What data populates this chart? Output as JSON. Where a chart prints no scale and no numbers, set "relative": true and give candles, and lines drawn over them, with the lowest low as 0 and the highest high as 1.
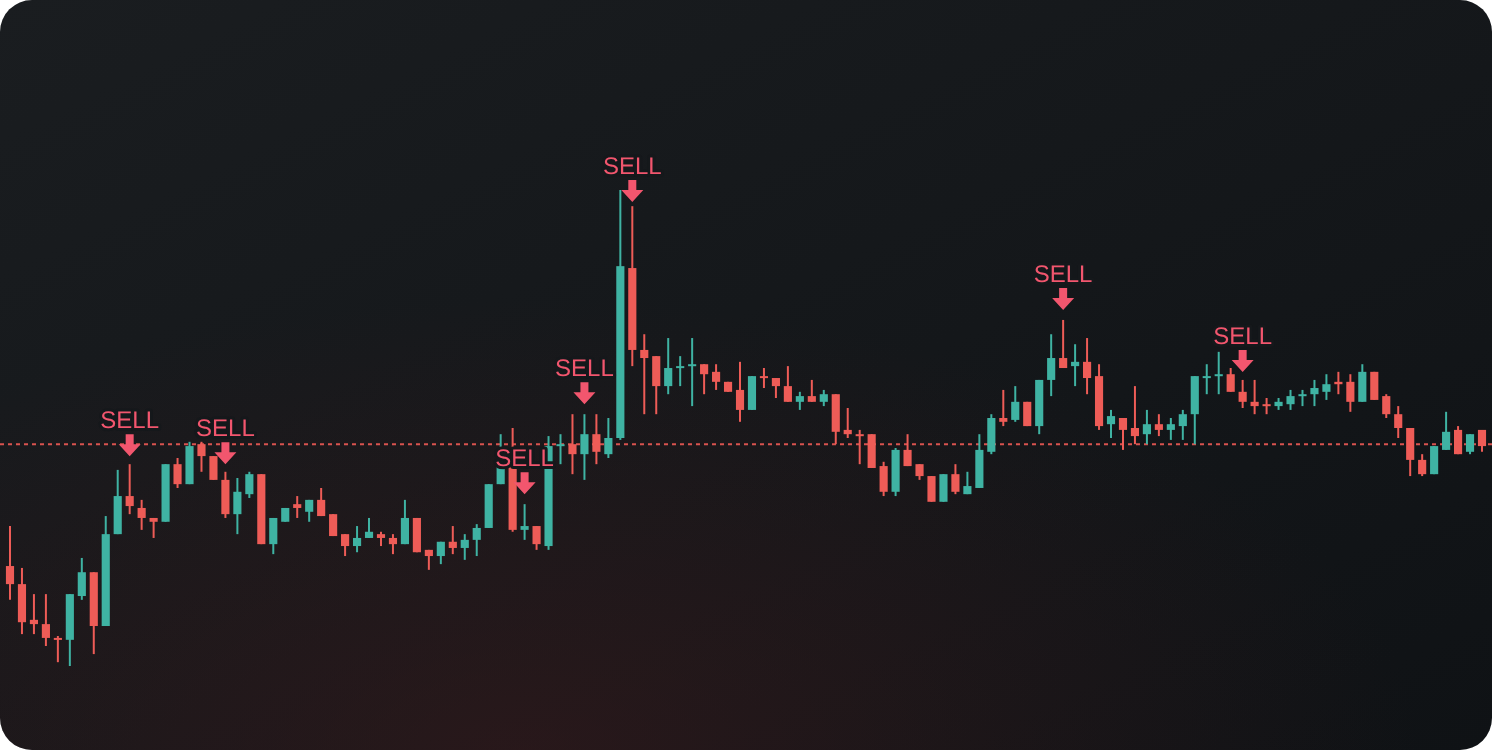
{
  "chart_data": {
    "type": "candlestick",
    "relative": true,
    "categories": [
      null,
      null,
      null,
      null,
      null,
      null,
      null,
      null,
      null,
      null,
      null,
      null,
      null,
      null,
      null,
      null,
      null,
      null,
      null,
      null,
      null,
      null,
      null,
      null,
      null,
      null,
      null,
      null,
      null,
      null,
      null,
      null,
      null,
      null,
      null,
      null,
      null,
      null,
      null,
      null,
      null,
      null,
      null,
      null,
      null,
      null,
      null,
      null,
      null,
      null,
      null,
      null,
      null,
      null,
      null,
      null,
      null,
      null,
      null,
      null,
      null,
      null,
      null,
      null,
      null,
      null,
      null,
      null,
      null,
      null,
      null,
      null,
      null,
      null,
      null,
      null,
      null,
      null,
      null,
      null,
      null,
      null,
      null,
      null,
      null,
      null,
      null,
      null,
      null,
      null,
      null,
      null,
      null,
      null,
      null,
      null,
      null,
      null,
      null,
      null,
      null,
      null,
      null,
      null,
      null,
      null,
      null,
      null,
      null,
      null,
      null,
      null,
      null,
      null,
      null,
      null,
      null,
      null,
      null,
      null,
      null,
      null,
      null,
      null
    ],
    "ohlc": [
      [
        0.21,
        0.294,
        0.139,
        0.172
      ],
      [
        0.172,
        0.206,
        0.067,
        0.092
      ],
      [
        0.097,
        0.151,
        0.067,
        0.088
      ],
      [
        0.088,
        0.151,
        0.042,
        0.059
      ],
      [
        0.059,
        0.063,
        0.008,
        0.055
      ],
      [
        0.055,
        0.151,
        0.0,
        0.151
      ],
      [
        0.147,
        0.227,
        0.139,
        0.197
      ],
      [
        0.197,
        0.197,
        0.025,
        0.084
      ],
      [
        0.084,
        0.315,
        0.084,
        0.277
      ],
      [
        0.277,
        0.412,
        0.277,
        0.357
      ],
      [
        0.357,
        0.424,
        0.319,
        0.336
      ],
      [
        0.332,
        0.349,
        0.286,
        0.311
      ],
      [
        0.311,
        0.311,
        0.269,
        0.303
      ],
      [
        0.303,
        0.424,
        0.303,
        0.424
      ],
      [
        0.424,
        0.437,
        0.374,
        0.382
      ],
      [
        0.382,
        0.471,
        0.382,
        0.462
      ],
      [
        0.466,
        0.471,
        0.408,
        0.441
      ],
      [
        0.441,
        0.441,
        0.391,
        0.391
      ],
      [
        0.391,
        0.408,
        0.311,
        0.319
      ],
      [
        0.319,
        0.395,
        0.277,
        0.366
      ],
      [
        0.361,
        0.408,
        0.353,
        0.403
      ],
      [
        0.403,
        0.403,
        0.256,
        0.256
      ],
      [
        0.256,
        0.311,
        0.235,
        0.311
      ],
      [
        0.303,
        0.332,
        0.303,
        0.332
      ],
      [
        0.34,
        0.357,
        0.311,
        0.332
      ],
      [
        0.324,
        0.349,
        0.303,
        0.349
      ],
      [
        0.349,
        0.374,
        0.315,
        0.315
      ],
      [
        0.319,
        0.319,
        0.273,
        0.273
      ],
      [
        0.277,
        0.277,
        0.231,
        0.252
      ],
      [
        0.252,
        0.294,
        0.239,
        0.269
      ],
      [
        0.269,
        0.311,
        0.269,
        0.282
      ],
      [
        0.277,
        0.282,
        0.252,
        0.269
      ],
      [
        0.269,
        0.277,
        0.235,
        0.256
      ],
      [
        0.256,
        0.349,
        0.256,
        0.311
      ],
      [
        0.311,
        0.311,
        0.239,
        0.239
      ],
      [
        0.244,
        0.244,
        0.202,
        0.231
      ],
      [
        0.231,
        0.261,
        0.214,
        0.261
      ],
      [
        0.261,
        0.294,
        0.235,
        0.248
      ],
      [
        0.248,
        0.277,
        0.223,
        0.265
      ],
      [
        0.265,
        0.298,
        0.231,
        0.29
      ],
      [
        0.29,
        0.382,
        0.29,
        0.382
      ],
      [
        0.382,
        0.487,
        0.382,
        0.429
      ],
      [
        0.429,
        0.5,
        0.282,
        0.286
      ],
      [
        0.286,
        0.34,
        0.265,
        0.294
      ],
      [
        0.294,
        0.294,
        0.244,
        0.256
      ],
      [
        0.252,
        0.483,
        0.244,
        0.462
      ],
      [
        0.462,
        0.487,
        0.424,
        0.466
      ],
      [
        0.466,
        0.529,
        0.403,
        0.445
      ],
      [
        0.445,
        0.529,
        0.391,
        0.487
      ],
      [
        0.487,
        0.529,
        0.424,
        0.45
      ],
      [
        0.445,
        0.521,
        0.437,
        0.479
      ],
      [
        0.479,
        1.0,
        0.475,
        0.84
      ],
      [
        0.836,
        0.966,
        0.63,
        0.664
      ],
      [
        0.664,
        0.697,
        0.529,
        0.647
      ],
      [
        0.651,
        0.651,
        0.529,
        0.588
      ],
      [
        0.588,
        0.689,
        0.571,
        0.626
      ],
      [
        0.626,
        0.651,
        0.588,
        0.63
      ],
      [
        0.63,
        0.689,
        0.546,
        0.634
      ],
      [
        0.634,
        0.634,
        0.571,
        0.613
      ],
      [
        0.618,
        0.634,
        0.58,
        0.597
      ],
      [
        0.597,
        0.597,
        0.576,
        0.576
      ],
      [
        0.58,
        0.639,
        0.513,
        0.538
      ],
      [
        0.538,
        0.609,
        0.538,
        0.609
      ],
      [
        0.609,
        0.626,
        0.584,
        0.605
      ],
      [
        0.605,
        0.605,
        0.563,
        0.588
      ],
      [
        0.588,
        0.63,
        0.555,
        0.555
      ],
      [
        0.555,
        0.576,
        0.538,
        0.567
      ],
      [
        0.567,
        0.601,
        0.555,
        0.555
      ],
      [
        0.555,
        0.58,
        0.546,
        0.571
      ],
      [
        0.571,
        0.571,
        0.466,
        0.492
      ],
      [
        0.496,
        0.542,
        0.479,
        0.487
      ],
      [
        0.487,
        0.496,
        0.424,
        0.483
      ],
      [
        0.487,
        0.487,
        0.416,
        0.416
      ],
      [
        0.42,
        0.429,
        0.357,
        0.366
      ],
      [
        0.366,
        0.458,
        0.357,
        0.454
      ],
      [
        0.454,
        0.487,
        0.42,
        0.42
      ],
      [
        0.424,
        0.424,
        0.391,
        0.399
      ],
      [
        0.399,
        0.399,
        0.345,
        0.345
      ],
      [
        0.345,
        0.403,
        0.345,
        0.403
      ],
      [
        0.403,
        0.424,
        0.361,
        0.366
      ],
      [
        0.361,
        0.408,
        0.361,
        0.378
      ],
      [
        0.374,
        0.487,
        0.374,
        0.454
      ],
      [
        0.45,
        0.529,
        0.445,
        0.521
      ],
      [
        0.521,
        0.58,
        0.504,
        0.513
      ],
      [
        0.517,
        0.588,
        0.513,
        0.555
      ],
      [
        0.555,
        0.555,
        0.504,
        0.504
      ],
      [
        0.504,
        0.601,
        0.487,
        0.601
      ],
      [
        0.601,
        0.697,
        0.567,
        0.647
      ],
      [
        0.647,
        0.727,
        0.626,
        0.626
      ],
      [
        0.63,
        0.676,
        0.588,
        0.639
      ],
      [
        0.639,
        0.689,
        0.571,
        0.605
      ],
      [
        0.609,
        0.634,
        0.496,
        0.504
      ],
      [
        0.508,
        0.538,
        0.479,
        0.525
      ],
      [
        0.521,
        0.521,
        0.454,
        0.496
      ],
      [
        0.5,
        0.588,
        0.466,
        0.483
      ],
      [
        0.487,
        0.538,
        0.466,
        0.508
      ],
      [
        0.508,
        0.529,
        0.483,
        0.496
      ],
      [
        0.496,
        0.521,
        0.475,
        0.508
      ],
      [
        0.504,
        0.538,
        0.475,
        0.529
      ],
      [
        0.529,
        0.609,
        0.466,
        0.609
      ],
      [
        0.605,
        0.634,
        0.571,
        0.609
      ],
      [
        0.609,
        0.66,
        0.571,
        0.613
      ],
      [
        0.613,
        0.626,
        0.576,
        0.576
      ],
      [
        0.576,
        0.601,
        0.542,
        0.555
      ],
      [
        0.555,
        0.601,
        0.529,
        0.546
      ],
      [
        0.55,
        0.563,
        0.529,
        0.546
      ],
      [
        0.546,
        0.563,
        0.538,
        0.555
      ],
      [
        0.55,
        0.58,
        0.538,
        0.567
      ],
      [
        0.567,
        0.58,
        0.546,
        0.571
      ],
      [
        0.571,
        0.601,
        0.546,
        0.584
      ],
      [
        0.576,
        0.613,
        0.559,
        0.592
      ],
      [
        0.597,
        0.618,
        0.571,
        0.592
      ],
      [
        0.597,
        0.613,
        0.534,
        0.555
      ],
      [
        0.555,
        0.634,
        0.555,
        0.618
      ],
      [
        0.618,
        0.618,
        0.559,
        0.559
      ],
      [
        0.567,
        0.571,
        0.521,
        0.529
      ],
      [
        0.529,
        0.546,
        0.479,
        0.5
      ],
      [
        0.5,
        0.5,
        0.399,
        0.433
      ],
      [
        0.433,
        0.445,
        0.399,
        0.403
      ],
      [
        0.403,
        0.462,
        0.403,
        0.462
      ],
      [
        0.454,
        0.534,
        0.454,
        0.492
      ],
      [
        0.496,
        0.504,
        0.445,
        0.445
      ],
      [
        0.45,
        0.487,
        0.445,
        0.487
      ],
      [
        0.496,
        0.496,
        0.45,
        0.462
      ]
    ],
    "colors": [
      "#ee5c57",
      "#ee5c57",
      "#ee5c57",
      "#ee5c57",
      "#ee5c57",
      "#3fb3a3",
      "#3fb3a3",
      "#ee5c57",
      "#3fb3a3",
      "#3fb3a3",
      "#ee5c57",
      "#ee5c57",
      "#ee5c57",
      "#3fb3a3",
      "#ee5c57",
      "#3fb3a3",
      "#ee5c57",
      "#ee5c57",
      "#ee5c57",
      "#3fb3a3",
      "#3fb3a3",
      "#ee5c57",
      "#3fb3a3",
      "#3fb3a3",
      "#ee5c57",
      "#3fb3a3",
      "#ee5c57",
      "#ee5c57",
      "#ee5c57",
      "#3fb3a3",
      "#3fb3a3",
      "#ee5c57",
      "#ee5c57",
      "#3fb3a3",
      "#ee5c57",
      "#ee5c57",
      "#3fb3a3",
      "#ee5c57",
      "#3fb3a3",
      "#3fb3a3",
      "#3fb3a3",
      "#3fb3a3",
      "#ee5c57",
      "#3fb3a3",
      "#ee5c57",
      "#3fb3a3",
      "#3fb3a3",
      "#ee5c57",
      "#3fb3a3",
      "#ee5c57",
      "#3fb3a3",
      "#3fb3a3",
      "#ee5c57",
      "#ee5c57",
      "#ee5c57",
      "#3fb3a3",
      "#3fb3a3",
      "#3fb3a3",
      "#ee5c57",
      "#ee5c57",
      "#ee5c57",
      "#ee5c57",
      "#3fb3a3",
      "#ee5c57",
      "#ee5c57",
      "#ee5c57",
      "#3fb3a3",
      "#ee5c57",
      "#3fb3a3",
      "#ee5c57",
      "#ee5c57",
      "#ee5c57",
      "#ee5c57",
      "#ee5c57",
      "#3fb3a3",
      "#ee5c57",
      "#ee5c57",
      "#ee5c57",
      "#3fb3a3",
      "#ee5c57",
      "#3fb3a3",
      "#3fb3a3",
      "#3fb3a3",
      "#ee5c57",
      "#3fb3a3",
      "#ee5c57",
      "#3fb3a3",
      "#3fb3a3",
      "#ee5c57",
      "#3fb3a3",
      "#ee5c57",
      "#ee5c57",
      "#3fb3a3",
      "#ee5c57",
      "#ee5c57",
      "#3fb3a3",
      "#ee5c57",
      "#3fb3a3",
      "#3fb3a3",
      "#3fb3a3",
      "#3fb3a3",
      "#3fb3a3",
      "#ee5c57",
      "#ee5c57",
      "#ee5c57",
      "#ee5c57",
      "#3fb3a3",
      "#3fb3a3",
      "#3fb3a3",
      "#3fb3a3",
      "#3fb3a3",
      "#ee5c57",
      "#ee5c57",
      "#3fb3a3",
      "#ee5c57",
      "#ee5c57",
      "#ee5c57",
      "#ee5c57",
      "#ee5c57",
      "#3fb3a3",
      "#3fb3a3",
      "#ee5c57",
      "#3fb3a3",
      "#ee5c57"
    ],
    "series": [
      {
        "type": "scatter",
        "name": "SELL",
        "color": "#f2566e",
        "values": [
          null,
          null,
          null,
          null,
          null,
          null,
          null,
          null,
          null,
          null,
          0.464,
          null,
          null,
          null,
          null,
          null,
          null,
          null,
          0.447,
          null,
          null,
          null,
          null,
          null,
          null,
          null,
          null,
          null,
          null,
          null,
          null,
          null,
          null,
          null,
          null,
          null,
          null,
          null,
          null,
          null,
          null,
          null,
          null,
          0.384,
          null,
          null,
          null,
          null,
          0.573,
          null,
          null,
          null,
          0.998,
          null,
          null,
          null,
          null,
          null,
          null,
          null,
          null,
          null,
          null,
          null,
          null,
          null,
          null,
          null,
          null,
          null,
          null,
          null,
          null,
          null,
          null,
          null,
          null,
          null,
          null,
          null,
          null,
          null,
          null,
          null,
          null,
          null,
          null,
          null,
          0.771,
          null,
          null,
          null,
          null,
          null,
          null,
          null,
          null,
          null,
          null,
          null,
          null,
          null,
          null,
          0.641,
          null,
          null,
          null,
          null,
          null,
          null,
          null,
          null,
          null,
          null,
          null,
          null,
          null,
          null,
          null,
          null,
          null,
          null,
          null,
          null
        ]
      }
    ],
    "ref_lines": [
      {
        "axis": "y",
        "value": 0.466,
        "color": "#d9534f",
        "line_style": "dotted"
      }
    ]
  }
}
